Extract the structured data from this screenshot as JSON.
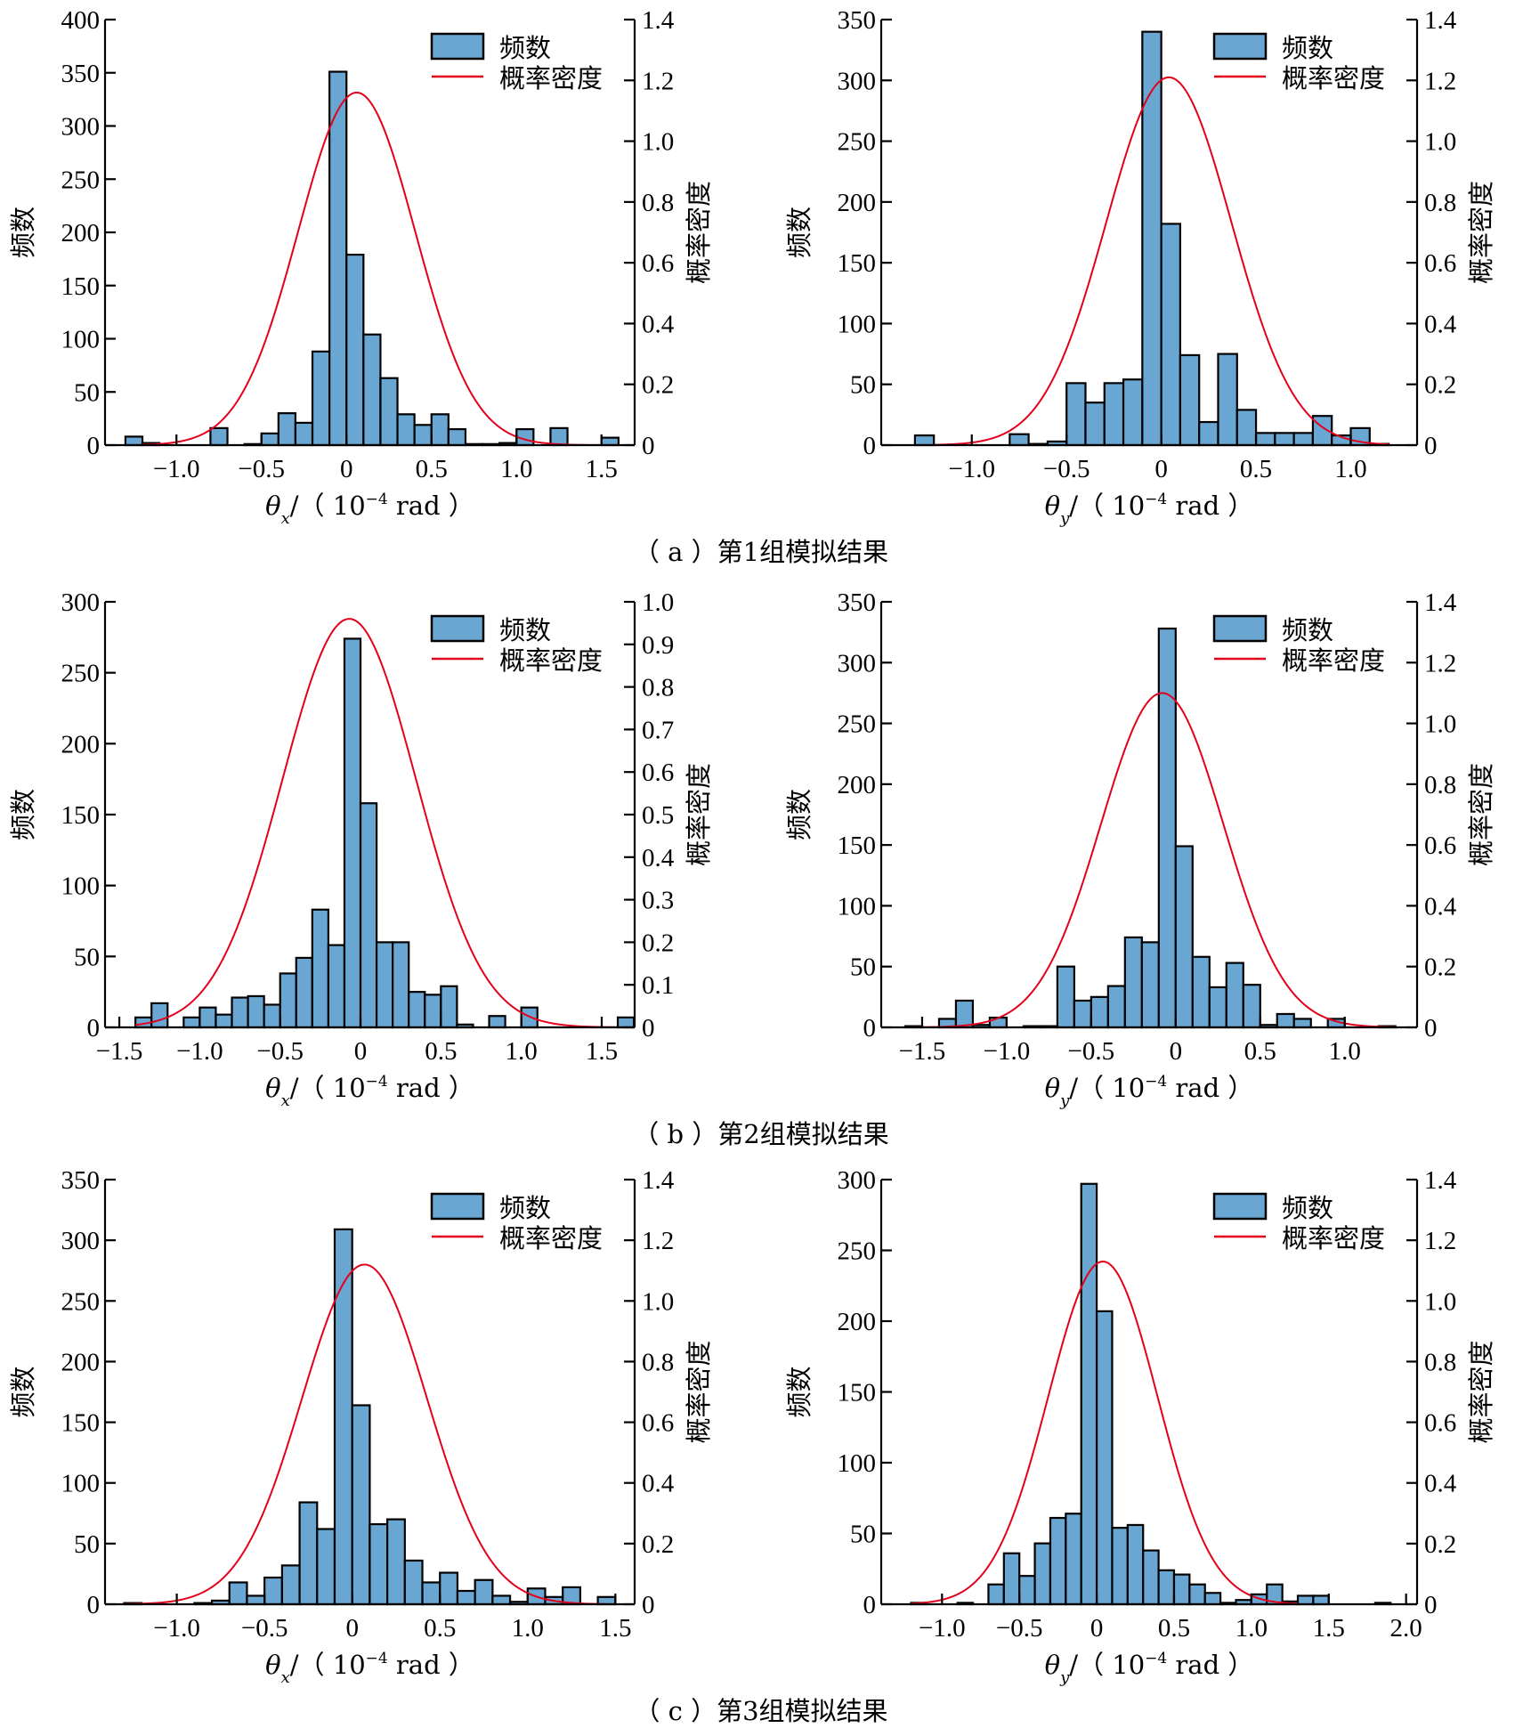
{
  "figure": {
    "captions": [
      "（ a ）第1组模拟结果",
      "（ b ）第2组模拟结果",
      "（ c ）第3组模拟结果"
    ]
  },
  "colors": {
    "bar_fill": "#6aa6d2",
    "bar_edge": "#000000",
    "density_line": "#e3001b"
  },
  "chart_data": [
    {
      "id": "a-x",
      "type": "bar",
      "title": "",
      "legend": [
        "频数",
        "概率密度"
      ],
      "legend_position": "top-right",
      "xlabel_symbol": "θ",
      "xlabel_sub": "x",
      "xlabel_unit": "/（ 10",
      "xlabel_exp": "−4",
      "xlabel_tail": " rad ）",
      "ylabel": "频数",
      "y2label": "概率密度",
      "xlim": [
        -1.42,
        1.695
      ],
      "ylim": [
        0,
        400
      ],
      "y2lim": [
        0,
        1.4
      ],
      "xticks": [
        -1.0,
        -0.5,
        0,
        0.5,
        1.0,
        1.5
      ],
      "xtick_labels": [
        "−1.0",
        "−0.5",
        "0",
        "0.5",
        "1.0",
        "1.5"
      ],
      "yticks": [
        0,
        50,
        100,
        150,
        200,
        250,
        300,
        350,
        400
      ],
      "ytick_labels": [
        "0",
        "50",
        "100",
        "150",
        "200",
        "250",
        "300",
        "350",
        "400"
      ],
      "y2ticks": [
        0,
        0.2,
        0.4,
        0.6,
        0.8,
        1.0,
        1.2,
        1.4
      ],
      "y2tick_labels": [
        "0",
        "0.2",
        "0.4",
        "0.6",
        "0.8",
        "1.0",
        "1.2",
        "1.4"
      ],
      "bin_start": -1.3,
      "bin_width": 0.1,
      "counts": [
        8,
        2,
        0,
        0,
        0,
        16,
        0,
        1,
        11,
        30,
        21,
        88,
        351,
        179,
        104,
        63,
        29,
        19,
        29,
        15,
        1,
        1,
        2,
        15,
        0,
        16,
        0,
        0,
        7
      ],
      "density": {
        "distribution": "normal",
        "mean": 0.06,
        "std": 0.344,
        "peak": 1.16,
        "x_range": [
          -1.2,
          1.5
        ]
      }
    },
    {
      "id": "a-y",
      "type": "bar",
      "title": "",
      "legend": [
        "频数",
        "概率密度"
      ],
      "legend_position": "top-right",
      "xlabel_symbol": "θ",
      "xlabel_sub": "y",
      "xlabel_unit": "/（ 10",
      "xlabel_exp": "−4",
      "xlabel_tail": " rad ）",
      "ylabel": "频数",
      "y2label": "概率密度",
      "xlim": [
        -1.478,
        1.35
      ],
      "ylim": [
        0,
        350
      ],
      "y2lim": [
        0,
        1.4
      ],
      "xticks": [
        -1.0,
        -0.5,
        0,
        0.5,
        1.0
      ],
      "xtick_labels": [
        "−1.0",
        "−0.5",
        "0",
        "0.5",
        "1.0"
      ],
      "yticks": [
        0,
        50,
        100,
        150,
        200,
        250,
        300,
        350
      ],
      "ytick_labels": [
        "0",
        "50",
        "100",
        "150",
        "200",
        "250",
        "300",
        "350"
      ],
      "y2ticks": [
        0,
        0.2,
        0.4,
        0.6,
        0.8,
        1.0,
        1.2,
        1.4
      ],
      "y2tick_labels": [
        "0",
        "0.2",
        "0.4",
        "0.6",
        "0.8",
        "1.0",
        "1.2",
        "1.4"
      ],
      "bin_start": -1.3,
      "bin_width": 0.1,
      "counts": [
        8,
        0,
        0,
        0,
        0,
        9,
        1,
        3,
        51,
        35,
        51,
        54,
        340,
        182,
        74,
        19,
        75,
        29,
        10,
        10,
        10,
        24,
        8,
        14,
        1
      ],
      "density": {
        "distribution": "normal",
        "mean": 0.04,
        "std": 0.33,
        "peak": 1.21,
        "x_range": [
          -1.2,
          1.2
        ]
      }
    },
    {
      "id": "b-x",
      "type": "bar",
      "title": "",
      "legend": [
        "频数",
        "概率密度"
      ],
      "legend_position": "top-right",
      "xlabel_symbol": "θ",
      "xlabel_sub": "x",
      "xlabel_unit": "/（ 10",
      "xlabel_exp": "−4",
      "xlabel_tail": " rad ）",
      "ylabel": "频数",
      "y2label": "概率密度",
      "xlim": [
        -1.589,
        1.705
      ],
      "ylim": [
        0,
        300
      ],
      "y2lim": [
        0,
        1.0
      ],
      "xticks": [
        -1.5,
        -1.0,
        -0.5,
        0,
        0.5,
        1.0,
        1.5
      ],
      "xtick_labels": [
        "−1.5",
        "−1.0",
        "−0.5",
        "0",
        "0.5",
        "1.0",
        "1.5"
      ],
      "yticks": [
        0,
        50,
        100,
        150,
        200,
        250,
        300
      ],
      "ytick_labels": [
        "0",
        "50",
        "100",
        "150",
        "200",
        "250",
        "300"
      ],
      "y2ticks": [
        0,
        0.1,
        0.2,
        0.3,
        0.4,
        0.5,
        0.6,
        0.7,
        0.8,
        0.9,
        1.0
      ],
      "y2tick_labels": [
        "0",
        "0.1",
        "0.2",
        "0.3",
        "0.4",
        "0.5",
        "0.6",
        "0.7",
        "0.8",
        "0.9",
        "1.0"
      ],
      "bin_start": -1.4,
      "bin_width": 0.1,
      "counts": [
        7,
        17,
        0,
        7,
        14,
        9,
        21,
        22,
        16,
        38,
        49,
        83,
        58,
        274,
        158,
        60,
        60,
        25,
        23,
        29,
        2,
        0,
        8,
        0,
        14,
        0,
        0,
        0,
        0,
        0,
        7
      ],
      "density": {
        "distribution": "normal",
        "mean": -0.07,
        "std": 0.4156,
        "peak": 0.96,
        "x_range": [
          -1.4,
          1.6
        ]
      }
    },
    {
      "id": "b-y",
      "type": "bar",
      "title": "",
      "legend": [
        "频数",
        "概率密度"
      ],
      "legend_position": "top-right",
      "xlabel_symbol": "θ",
      "xlabel_sub": "y",
      "xlabel_unit": "/（ 10",
      "xlabel_exp": "−4",
      "xlabel_tail": " rad ）",
      "ylabel": "频数",
      "y2label": "概率密度",
      "xlim": [
        -1.742,
        1.428
      ],
      "ylim": [
        0,
        350
      ],
      "y2lim": [
        0,
        1.4
      ],
      "xticks": [
        -1.5,
        -1.0,
        -0.5,
        0,
        0.5,
        1.0
      ],
      "xtick_labels": [
        "−1.5",
        "−1.0",
        "−0.5",
        "0",
        "0.5",
        "1.0"
      ],
      "yticks": [
        0,
        50,
        100,
        150,
        200,
        250,
        300,
        350
      ],
      "ytick_labels": [
        "0",
        "50",
        "100",
        "150",
        "200",
        "250",
        "300",
        "350"
      ],
      "y2ticks": [
        0,
        0.2,
        0.4,
        0.6,
        0.8,
        1.0,
        1.2,
        1.4
      ],
      "y2tick_labels": [
        "0",
        "0.2",
        "0.4",
        "0.6",
        "0.8",
        "1.0",
        "1.2",
        "1.4"
      ],
      "bin_start": -1.6,
      "bin_width": 0.1,
      "counts": [
        1,
        0,
        7,
        22,
        2,
        8,
        0,
        1,
        1,
        50,
        22,
        25,
        34,
        74,
        70,
        328,
        149,
        58,
        33,
        53,
        35,
        2,
        11,
        7,
        0,
        7,
        0,
        0,
        1
      ],
      "density": {
        "distribution": "normal",
        "mean": -0.08,
        "std": 0.363,
        "peak": 1.1,
        "x_range": [
          -1.6,
          1.3
        ]
      }
    },
    {
      "id": "c-x",
      "type": "bar",
      "title": "",
      "legend": [
        "频数",
        "概率密度"
      ],
      "legend_position": "top-right",
      "xlabel_symbol": "θ",
      "xlabel_sub": "x",
      "xlabel_unit": "/（ 10",
      "xlabel_exp": "−4",
      "xlabel_tail": " rad ）",
      "ylabel": "频数",
      "y2label": "概率密度",
      "xlim": [
        -1.409,
        1.61
      ],
      "ylim": [
        0,
        350
      ],
      "y2lim": [
        0,
        1.4
      ],
      "xticks": [
        -1.0,
        -0.5,
        0,
        0.5,
        1.0,
        1.5
      ],
      "xtick_labels": [
        "−1.0",
        "−0.5",
        "0",
        "0.5",
        "1.0",
        "1.5"
      ],
      "yticks": [
        0,
        50,
        100,
        150,
        200,
        250,
        300,
        350
      ],
      "ytick_labels": [
        "0",
        "50",
        "100",
        "150",
        "200",
        "250",
        "300",
        "350"
      ],
      "y2ticks": [
        0,
        0.2,
        0.4,
        0.6,
        0.8,
        1.0,
        1.2,
        1.4
      ],
      "y2tick_labels": [
        "0",
        "0.2",
        "0.4",
        "0.6",
        "0.8",
        "1.0",
        "1.2",
        "1.4"
      ],
      "bin_start": -1.3,
      "bin_width": 0.1,
      "counts": [
        1,
        0,
        0,
        0,
        1,
        3,
        18,
        7,
        22,
        32,
        84,
        62,
        309,
        164,
        66,
        70,
        36,
        18,
        26,
        11,
        20,
        7,
        2,
        13,
        6,
        14,
        0,
        6
      ],
      "density": {
        "distribution": "normal",
        "mean": 0.07,
        "std": 0.356,
        "peak": 1.12,
        "x_range": [
          -1.3,
          1.45
        ]
      }
    },
    {
      "id": "c-y",
      "type": "bar",
      "title": "",
      "legend": [
        "频数",
        "概率密度"
      ],
      "legend_position": "top-right",
      "xlabel_symbol": "θ",
      "xlabel_sub": "y",
      "xlabel_unit": "/（ 10",
      "xlabel_exp": "−4",
      "xlabel_tail": " rad ）",
      "ylabel": "频数",
      "y2label": "概率密度",
      "xlim": [
        -1.393,
        2.071
      ],
      "ylim": [
        0,
        300
      ],
      "y2lim": [
        0,
        1.4
      ],
      "xticks": [
        -1.0,
        -0.5,
        0,
        0.5,
        1.0,
        1.5,
        2.0
      ],
      "xtick_labels": [
        "−1.0",
        "−0.5",
        "0",
        "0.5",
        "1.0",
        "1.5",
        "2.0"
      ],
      "yticks": [
        0,
        50,
        100,
        150,
        200,
        250,
        300
      ],
      "ytick_labels": [
        "0",
        "50",
        "100",
        "150",
        "200",
        "250",
        "300"
      ],
      "y2ticks": [
        0,
        0.2,
        0.4,
        0.6,
        0.8,
        1.0,
        1.2,
        1.4
      ],
      "y2tick_labels": [
        "0",
        "0.2",
        "0.4",
        "0.6",
        "0.8",
        "1.0",
        "1.2",
        "1.4"
      ],
      "bin_start": -1.2,
      "bin_width": 0.1,
      "counts": [
        1,
        0,
        0,
        1,
        0,
        14,
        36,
        20,
        43,
        61,
        64,
        297,
        207,
        54,
        56,
        38,
        24,
        21,
        14,
        8,
        1,
        3,
        7,
        14,
        2,
        6,
        6,
        0,
        0,
        0,
        1
      ],
      "density": {
        "distribution": "normal",
        "mean": 0.04,
        "std": 0.353,
        "peak": 1.13,
        "x_range": [
          -1.2,
          1.3
        ]
      }
    }
  ]
}
